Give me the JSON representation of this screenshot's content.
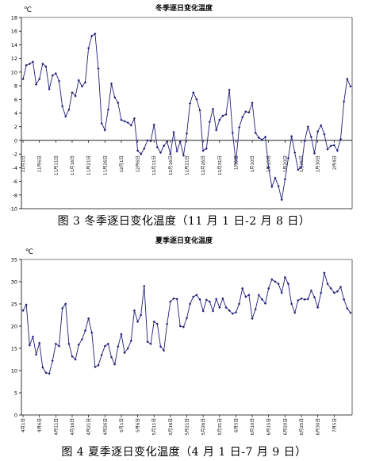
{
  "figures": [
    {
      "caption": "图 3 冬季逐日变化温度（11 月 1 日-2 月 8 日）"
    },
    {
      "caption": "图 4  夏季逐日变化温度（4 月 1 日-7 月 9 日）"
    }
  ],
  "chart_data": [
    {
      "type": "line",
      "title": "冬季逐日变化温度",
      "unit_label": "℃",
      "ylim": [
        -10,
        18
      ],
      "yticks": [
        -10,
        -8,
        -6,
        -4,
        -2,
        0,
        2,
        4,
        6,
        8,
        10,
        12,
        14,
        16,
        18
      ],
      "grid": false,
      "legend": "none",
      "line_color": "#1f1f7a",
      "x_tick_labels": [
        "11月1日",
        "11月6日",
        "11月11日",
        "11月16日",
        "11月21日",
        "11月26日",
        "12月1日",
        "12月6日",
        "12月11日",
        "12月16日",
        "12月21日",
        "12月26日",
        "12月31日",
        "1月5日",
        "1月10日",
        "1月15日",
        "1月20日",
        "1月25日",
        "1月30日",
        "2月4日"
      ],
      "x_tick_interval": 5,
      "values": [
        9.0,
        11.0,
        11.2,
        11.5,
        8.2,
        9.0,
        11.2,
        10.8,
        7.5,
        9.5,
        9.8,
        8.7,
        5.0,
        3.5,
        4.5,
        7.0,
        6.5,
        8.8,
        7.9,
        8.5,
        13.5,
        15.3,
        15.6,
        10.5,
        2.5,
        1.5,
        4.5,
        8.3,
        6.3,
        5.5,
        3.0,
        2.8,
        2.6,
        2.2,
        3.2,
        -1.5,
        -2.0,
        -1.2,
        0.0,
        -0.1,
        2.3,
        -1.0,
        -1.8,
        -0.8,
        -0.2,
        -2.0,
        1.2,
        -1.6,
        -0.2,
        -2.2,
        1.0,
        5.4,
        7.0,
        6.0,
        4.4,
        -1.5,
        -1.2,
        2.7,
        4.6,
        1.5,
        3.0,
        3.6,
        3.8,
        7.4,
        1.1,
        -3.2,
        1.9,
        3.4,
        4.2,
        4.1,
        5.5,
        1.1,
        0.4,
        0.1,
        0.5,
        -4.0,
        -6.8,
        -5.5,
        -6.7,
        -8.7,
        -5.7,
        -2.6,
        0.6,
        -1.8,
        -4.3,
        -3.9,
        -0.1,
        2.0,
        0.5,
        -1.9,
        1.3,
        2.2,
        0.9,
        -1.3,
        -0.8,
        -0.7,
        -1.5,
        0.2,
        5.7,
        9.0,
        7.9
      ]
    },
    {
      "type": "line",
      "title": "夏季逐日变化温度",
      "unit_label": "℃",
      "ylim": [
        0,
        35
      ],
      "yticks": [
        0,
        5,
        10,
        15,
        20,
        25,
        30,
        35
      ],
      "grid": false,
      "legend": "none",
      "line_color": "#1f1f7a",
      "x_tick_labels": [
        "4月1日",
        "4月6日",
        "4月11日",
        "4月16日",
        "4月21日",
        "4月26日",
        "5月1日",
        "5月6日",
        "5月11日",
        "5月16日",
        "5月21日",
        "5月26日",
        "5月31日",
        "6月5日",
        "6月10日",
        "6月15日",
        "6月20日",
        "6月25日",
        "6月30日",
        "7月5日"
      ],
      "x_tick_interval": 5,
      "values": [
        23.5,
        24.8,
        15.7,
        17.6,
        13.6,
        16.2,
        10.7,
        9.5,
        9.3,
        12.2,
        16.0,
        15.5,
        24.0,
        25.0,
        16.0,
        13.2,
        12.5,
        15.8,
        17.0,
        19.0,
        21.7,
        18.5,
        10.8,
        11.2,
        13.5,
        15.5,
        16.0,
        13.0,
        11.4,
        15.4,
        18.2,
        14.0,
        15.0,
        16.7,
        23.5,
        21.0,
        22.5,
        29.0,
        16.5,
        16.0,
        21.0,
        20.5,
        15.4,
        14.5,
        20.5,
        25.5,
        26.2,
        26.1,
        20.0,
        19.8,
        21.8,
        25.0,
        26.6,
        27.0,
        26.0,
        23.4,
        25.9,
        25.5,
        23.4,
        26.1,
        24.2,
        26.2,
        24.2,
        23.5,
        22.8,
        23.1,
        25.0,
        28.5,
        26.6,
        27.0,
        21.7,
        23.8,
        27.0,
        26.0,
        25.1,
        28.5,
        30.5,
        30.0,
        29.5,
        27.5,
        31.0,
        29.5,
        25.0,
        23.0,
        25.8,
        26.2,
        26.0,
        26.1,
        28.0,
        26.5,
        24.2,
        27.5,
        32.0,
        29.5,
        28.5,
        27.5,
        27.8,
        28.8,
        26.0,
        24.0,
        23.0
      ]
    }
  ]
}
